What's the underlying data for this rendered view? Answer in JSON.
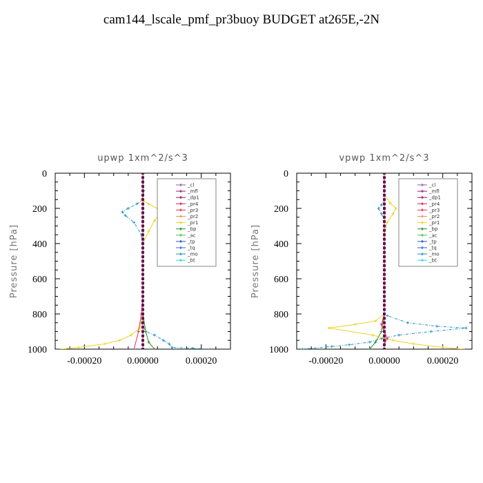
{
  "title": "cam144_lscale_pmf_pr3buoy  BUDGET at265E,-2N",
  "chart_data": [
    {
      "type": "line",
      "title": "upwp   1xm^2/s^3",
      "ylabel": "Pressure [hPa]",
      "xlim": [
        -0.0003,
        0.0003
      ],
      "ylim": [
        1000,
        0
      ],
      "xticks": [
        -0.0002,
        0,
        0.0002
      ],
      "xtick_labels": [
        "-0.00020",
        "0.00000",
        "0.00020"
      ],
      "yticks": [
        0,
        200,
        400,
        600,
        800,
        1000
      ],
      "ytick_labels": [
        "0",
        "200",
        "400",
        "600",
        "800",
        "1000"
      ],
      "legend_position": "upper-right",
      "series": [
        {
          "name": "_cl",
          "color": "#8a5aa8",
          "x": [
            0,
            0,
            0,
            0,
            0,
            0,
            0,
            0,
            0,
            0,
            0
          ],
          "y": [
            0,
            100,
            200,
            300,
            400,
            500,
            600,
            700,
            800,
            900,
            1000
          ]
        },
        {
          "name": "_mfl",
          "color": "#9a1a7a",
          "x": [
            0,
            0,
            0,
            0,
            0,
            0,
            0,
            0,
            0,
            0,
            0
          ],
          "y": [
            0,
            100,
            200,
            300,
            400,
            500,
            600,
            700,
            800,
            900,
            1000
          ]
        },
        {
          "name": "_dp1",
          "color": "#a0104a",
          "x": [
            0,
            0,
            0,
            0,
            0,
            0,
            0,
            0,
            0,
            0,
            0
          ],
          "y": [
            0,
            100,
            200,
            300,
            400,
            500,
            600,
            700,
            800,
            900,
            1000
          ]
        },
        {
          "name": "_pr4",
          "color": "#d02040",
          "x": [
            0,
            0,
            0,
            0,
            0,
            0,
            0,
            0,
            0,
            0,
            0
          ],
          "y": [
            0,
            100,
            200,
            300,
            400,
            500,
            600,
            700,
            800,
            900,
            1000
          ]
        },
        {
          "name": "_pr3",
          "color": "#e03050",
          "x": [
            0,
            0,
            0,
            0,
            0,
            0,
            0,
            0,
            -5e-06,
            -1.5e-05,
            -3e-05
          ],
          "y": [
            0,
            100,
            200,
            300,
            400,
            500,
            600,
            700,
            800,
            900,
            1000
          ]
        },
        {
          "name": "_pr2",
          "color": "#f08a50",
          "x": [
            0,
            0,
            0,
            0,
            0,
            0,
            0,
            0,
            0,
            0,
            0
          ],
          "y": [
            0,
            100,
            200,
            300,
            400,
            500,
            600,
            700,
            800,
            900,
            1000
          ]
        },
        {
          "name": "_pr1",
          "color": "#f0d020",
          "x": [
            0,
            0,
            0,
            -5e-06,
            2e-05,
            5e-05,
            6e-05,
            4e-05,
            2e-05,
            0,
            0,
            0,
            -1e-05,
            -4e-05,
            -8e-05,
            -0.00013,
            -0.00022,
            -0.00028
          ],
          "y": [
            0,
            100,
            130,
            150,
            175,
            200,
            225,
            270,
            330,
            400,
            600,
            800,
            880,
            920,
            950,
            970,
            990,
            1000
          ]
        },
        {
          "name": "_bp",
          "color": "#2a8a2a",
          "x": [
            0,
            0,
            0,
            0,
            0,
            0,
            0,
            0,
            0,
            1e-05,
            2e-05,
            4e-05
          ],
          "y": [
            0,
            100,
            200,
            300,
            400,
            500,
            600,
            700,
            800,
            900,
            960,
            1000
          ]
        },
        {
          "name": "_ac",
          "color": "#40c040",
          "x": [
            0,
            0,
            0,
            0,
            0,
            0,
            0,
            0,
            0,
            0,
            0
          ],
          "y": [
            0,
            100,
            200,
            300,
            400,
            500,
            600,
            700,
            800,
            900,
            1000
          ]
        },
        {
          "name": "_tp",
          "color": "#2a4ad0",
          "x": [
            0,
            0,
            0,
            0,
            0,
            0,
            0,
            0,
            0,
            0,
            0
          ],
          "y": [
            0,
            100,
            200,
            300,
            400,
            500,
            600,
            700,
            800,
            900,
            1000
          ]
        },
        {
          "name": "_tq",
          "color": "#3060d8",
          "x": [
            0,
            0,
            0,
            0,
            0,
            0,
            0,
            0,
            0,
            0,
            0
          ],
          "y": [
            0,
            100,
            200,
            300,
            400,
            500,
            600,
            700,
            800,
            900,
            1000
          ]
        },
        {
          "name": "_mo",
          "color": "#2090c8",
          "x": [
            0,
            3e-06,
            0,
            -2e-05,
            -5e-05,
            -7e-05,
            -6e-05,
            -3e-05,
            -5e-06,
            0,
            0,
            0,
            -5e-06,
            1e-05,
            4e-05,
            7e-05,
            9e-05,
            0.0001,
            0.00017,
            0.00023
          ],
          "y": [
            0,
            100,
            150,
            175,
            200,
            220,
            240,
            280,
            350,
            420,
            500,
            800,
            850,
            900,
            920,
            950,
            970,
            990,
            995,
            1000
          ]
        },
        {
          "name": "_bt",
          "color": "#20d8e8",
          "x": [
            0,
            0,
            0,
            0,
            0,
            0,
            0,
            0,
            0,
            0,
            0
          ],
          "y": [
            0,
            100,
            200,
            300,
            400,
            500,
            600,
            700,
            800,
            900,
            1000
          ]
        }
      ]
    },
    {
      "type": "line",
      "title": "vpwp   1xm^2/s^3",
      "ylabel": "Pressure [hPa]",
      "xlim": [
        -0.0003,
        0.0003
      ],
      "ylim": [
        1000,
        0
      ],
      "xticks": [
        -0.0002,
        0,
        0.0002
      ],
      "xtick_labels": [
        "-0.00020",
        "0.00000",
        "0.00020"
      ],
      "yticks": [
        0,
        200,
        400,
        600,
        800,
        1000
      ],
      "ytick_labels": [
        "0",
        "200",
        "400",
        "600",
        "800",
        "1000"
      ],
      "legend_position": "upper-right",
      "series": [
        {
          "name": "_cl",
          "color": "#8a5aa8",
          "x": [
            0,
            0,
            0,
            0,
            0,
            0,
            0,
            0,
            0,
            0,
            0
          ],
          "y": [
            0,
            100,
            200,
            300,
            400,
            500,
            600,
            700,
            800,
            900,
            1000
          ]
        },
        {
          "name": "_mfl",
          "color": "#9a1a7a",
          "x": [
            0,
            0,
            0,
            0,
            0,
            0,
            0,
            0,
            0,
            0,
            0
          ],
          "y": [
            0,
            100,
            200,
            300,
            400,
            500,
            600,
            700,
            800,
            900,
            1000
          ]
        },
        {
          "name": "_dp1",
          "color": "#a0104a",
          "x": [
            0,
            0,
            0,
            0,
            0,
            0,
            0,
            0,
            0,
            0,
            0
          ],
          "y": [
            0,
            100,
            200,
            300,
            400,
            500,
            600,
            700,
            800,
            900,
            1000
          ]
        },
        {
          "name": "_pr4",
          "color": "#d02040",
          "x": [
            0,
            0,
            0,
            0,
            0,
            0,
            0,
            0,
            0,
            0,
            0
          ],
          "y": [
            0,
            100,
            200,
            300,
            400,
            500,
            600,
            700,
            800,
            900,
            1000
          ]
        },
        {
          "name": "_pr3",
          "color": "#e03050",
          "x": [
            0,
            0,
            0,
            0,
            0,
            0,
            0,
            0,
            0,
            -1e-05,
            0,
            1e-05,
            0,
            0
          ],
          "y": [
            0,
            100,
            200,
            300,
            400,
            500,
            600,
            700,
            800,
            860,
            900,
            940,
            970,
            1000
          ]
        },
        {
          "name": "_pr2",
          "color": "#f08a50",
          "x": [
            0,
            0,
            0,
            0,
            0,
            0,
            0,
            0,
            0,
            0,
            0
          ],
          "y": [
            0,
            100,
            200,
            300,
            400,
            500,
            600,
            700,
            800,
            900,
            1000
          ]
        },
        {
          "name": "_pr1",
          "color": "#f0d020",
          "x": [
            0,
            0,
            2e-05,
            4e-05,
            3e-05,
            1e-05,
            0,
            0,
            0,
            -3e-05,
            -0.0001,
            -0.00019,
            -4e-05,
            3e-05,
            0.0001,
            0.0002,
            0.00027
          ],
          "y": [
            0,
            120,
            170,
            200,
            230,
            280,
            340,
            600,
            800,
            840,
            860,
            880,
            920,
            950,
            970,
            990,
            1000
          ]
        },
        {
          "name": "_bp",
          "color": "#2a8a2a",
          "x": [
            0,
            0,
            0,
            0,
            0,
            0,
            0,
            0,
            0,
            -1e-05,
            -3e-05,
            -5e-05
          ],
          "y": [
            0,
            100,
            200,
            300,
            400,
            500,
            600,
            700,
            800,
            900,
            960,
            1000
          ]
        },
        {
          "name": "_ac",
          "color": "#40c040",
          "x": [
            0,
            0,
            0,
            0,
            0,
            0,
            0,
            0,
            0,
            0,
            0
          ],
          "y": [
            0,
            100,
            200,
            300,
            400,
            500,
            600,
            700,
            800,
            900,
            1000
          ]
        },
        {
          "name": "_tp",
          "color": "#2a4ad0",
          "x": [
            0,
            0,
            0,
            0,
            0,
            0,
            0,
            0,
            0,
            0,
            0
          ],
          "y": [
            0,
            100,
            200,
            300,
            400,
            500,
            600,
            700,
            800,
            900,
            1000
          ]
        },
        {
          "name": "_tq",
          "color": "#3060d8",
          "x": [
            0,
            0,
            0,
            0,
            0,
            0,
            0,
            0,
            0,
            0,
            0
          ],
          "y": [
            0,
            100,
            200,
            300,
            400,
            500,
            600,
            700,
            800,
            900,
            1000
          ]
        },
        {
          "name": "_mo",
          "color": "#2090c8",
          "x": [
            0,
            0,
            -1e-05,
            -2e-05,
            -1e-05,
            0,
            0,
            0,
            1e-05,
            8e-05,
            0.00018,
            0.00028,
            0.00016,
            5e-05,
            -1e-05,
            -5e-05,
            -0.00012,
            -0.00018,
            -0.00028
          ],
          "y": [
            0,
            150,
            180,
            200,
            230,
            270,
            320,
            800,
            810,
            850,
            870,
            880,
            900,
            920,
            940,
            960,
            975,
            985,
            1000
          ]
        },
        {
          "name": "_bt",
          "color": "#20d8e8",
          "x": [
            0,
            0,
            0,
            0,
            0,
            0,
            0,
            0,
            0,
            0,
            0
          ],
          "y": [
            0,
            100,
            200,
            300,
            400,
            500,
            600,
            700,
            800,
            900,
            1000
          ]
        }
      ]
    }
  ]
}
